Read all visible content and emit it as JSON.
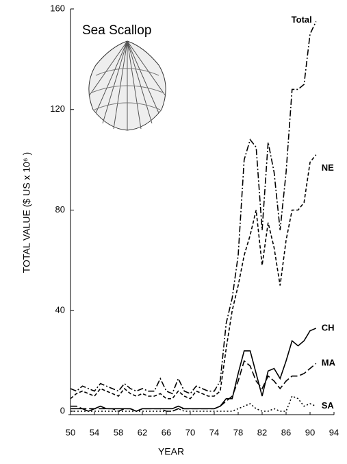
{
  "chart_data": {
    "type": "line",
    "title": "Sea Scallop",
    "x_label": "YEAR",
    "y_label": "TOTAL VALUE ($ US x 10⁶ )",
    "x": [
      50,
      51,
      52,
      53,
      54,
      55,
      56,
      57,
      58,
      59,
      60,
      61,
      62,
      63,
      64,
      65,
      66,
      67,
      68,
      69,
      70,
      71,
      72,
      73,
      74,
      75,
      76,
      77,
      78,
      79,
      80,
      81,
      82,
      83,
      84,
      85,
      86,
      87,
      88,
      89,
      90,
      91
    ],
    "xlim": [
      50,
      94
    ],
    "xticks": [
      50,
      54,
      58,
      62,
      66,
      70,
      74,
      78,
      82,
      86,
      90,
      94
    ],
    "ylim": [
      0,
      160
    ],
    "yticks": [
      0,
      40,
      80,
      120,
      160
    ],
    "series": [
      {
        "name": "Total",
        "color": "#000000",
        "dash": "9 3 2 3",
        "values": [
          9,
          8,
          10,
          9,
          8,
          11,
          10,
          9,
          8,
          11,
          9,
          8,
          9,
          8,
          8,
          13,
          8,
          7,
          13,
          8,
          7,
          10,
          9,
          8,
          8,
          12,
          35,
          45,
          62,
          100,
          108,
          105,
          72,
          107,
          95,
          72,
          95,
          128,
          128,
          130,
          150,
          155
        ]
      },
      {
        "name": "NE",
        "color": "#000000",
        "dash": "5 3",
        "values": [
          5,
          7,
          8,
          7,
          6,
          9,
          8,
          7,
          6,
          9,
          7,
          6,
          7,
          6,
          6,
          7,
          5,
          5,
          8,
          6,
          5,
          8,
          7,
          6,
          6,
          8,
          25,
          40,
          50,
          62,
          70,
          80,
          58,
          75,
          65,
          50,
          68,
          80,
          80,
          83,
          99,
          102
        ]
      },
      {
        "name": "CH",
        "color": "#000000",
        "dash": "",
        "values": [
          1,
          1,
          1,
          0,
          1,
          2,
          1,
          1,
          1,
          1,
          1,
          0,
          1,
          1,
          1,
          1,
          1,
          1,
          2,
          1,
          1,
          1,
          1,
          1,
          1,
          2,
          5,
          5,
          15,
          24,
          24,
          15,
          6,
          16,
          17,
          13,
          20,
          28,
          26,
          28,
          32,
          33
        ]
      },
      {
        "name": "MA",
        "color": "#000000",
        "dash": "10 4",
        "values": [
          2,
          2,
          1,
          1,
          1,
          1,
          1,
          1,
          0,
          1,
          1,
          0,
          1,
          1,
          1,
          1,
          0,
          0,
          1,
          1,
          1,
          1,
          1,
          1,
          1,
          2,
          4,
          6,
          12,
          20,
          18,
          12,
          9,
          14,
          12,
          9,
          12,
          14,
          14,
          15,
          17,
          19
        ]
      },
      {
        "name": "SA",
        "color": "#000000",
        "dash": "2 3",
        "values": [
          0,
          0,
          0,
          0,
          0,
          0,
          0,
          0,
          0,
          0,
          0,
          0,
          0,
          0,
          0,
          0,
          0,
          0,
          1,
          0,
          0,
          0,
          0,
          0,
          0,
          0,
          0,
          0,
          1,
          2,
          3,
          1,
          0,
          0,
          1,
          0,
          0,
          6,
          5,
          2,
          3,
          2
        ]
      }
    ]
  }
}
